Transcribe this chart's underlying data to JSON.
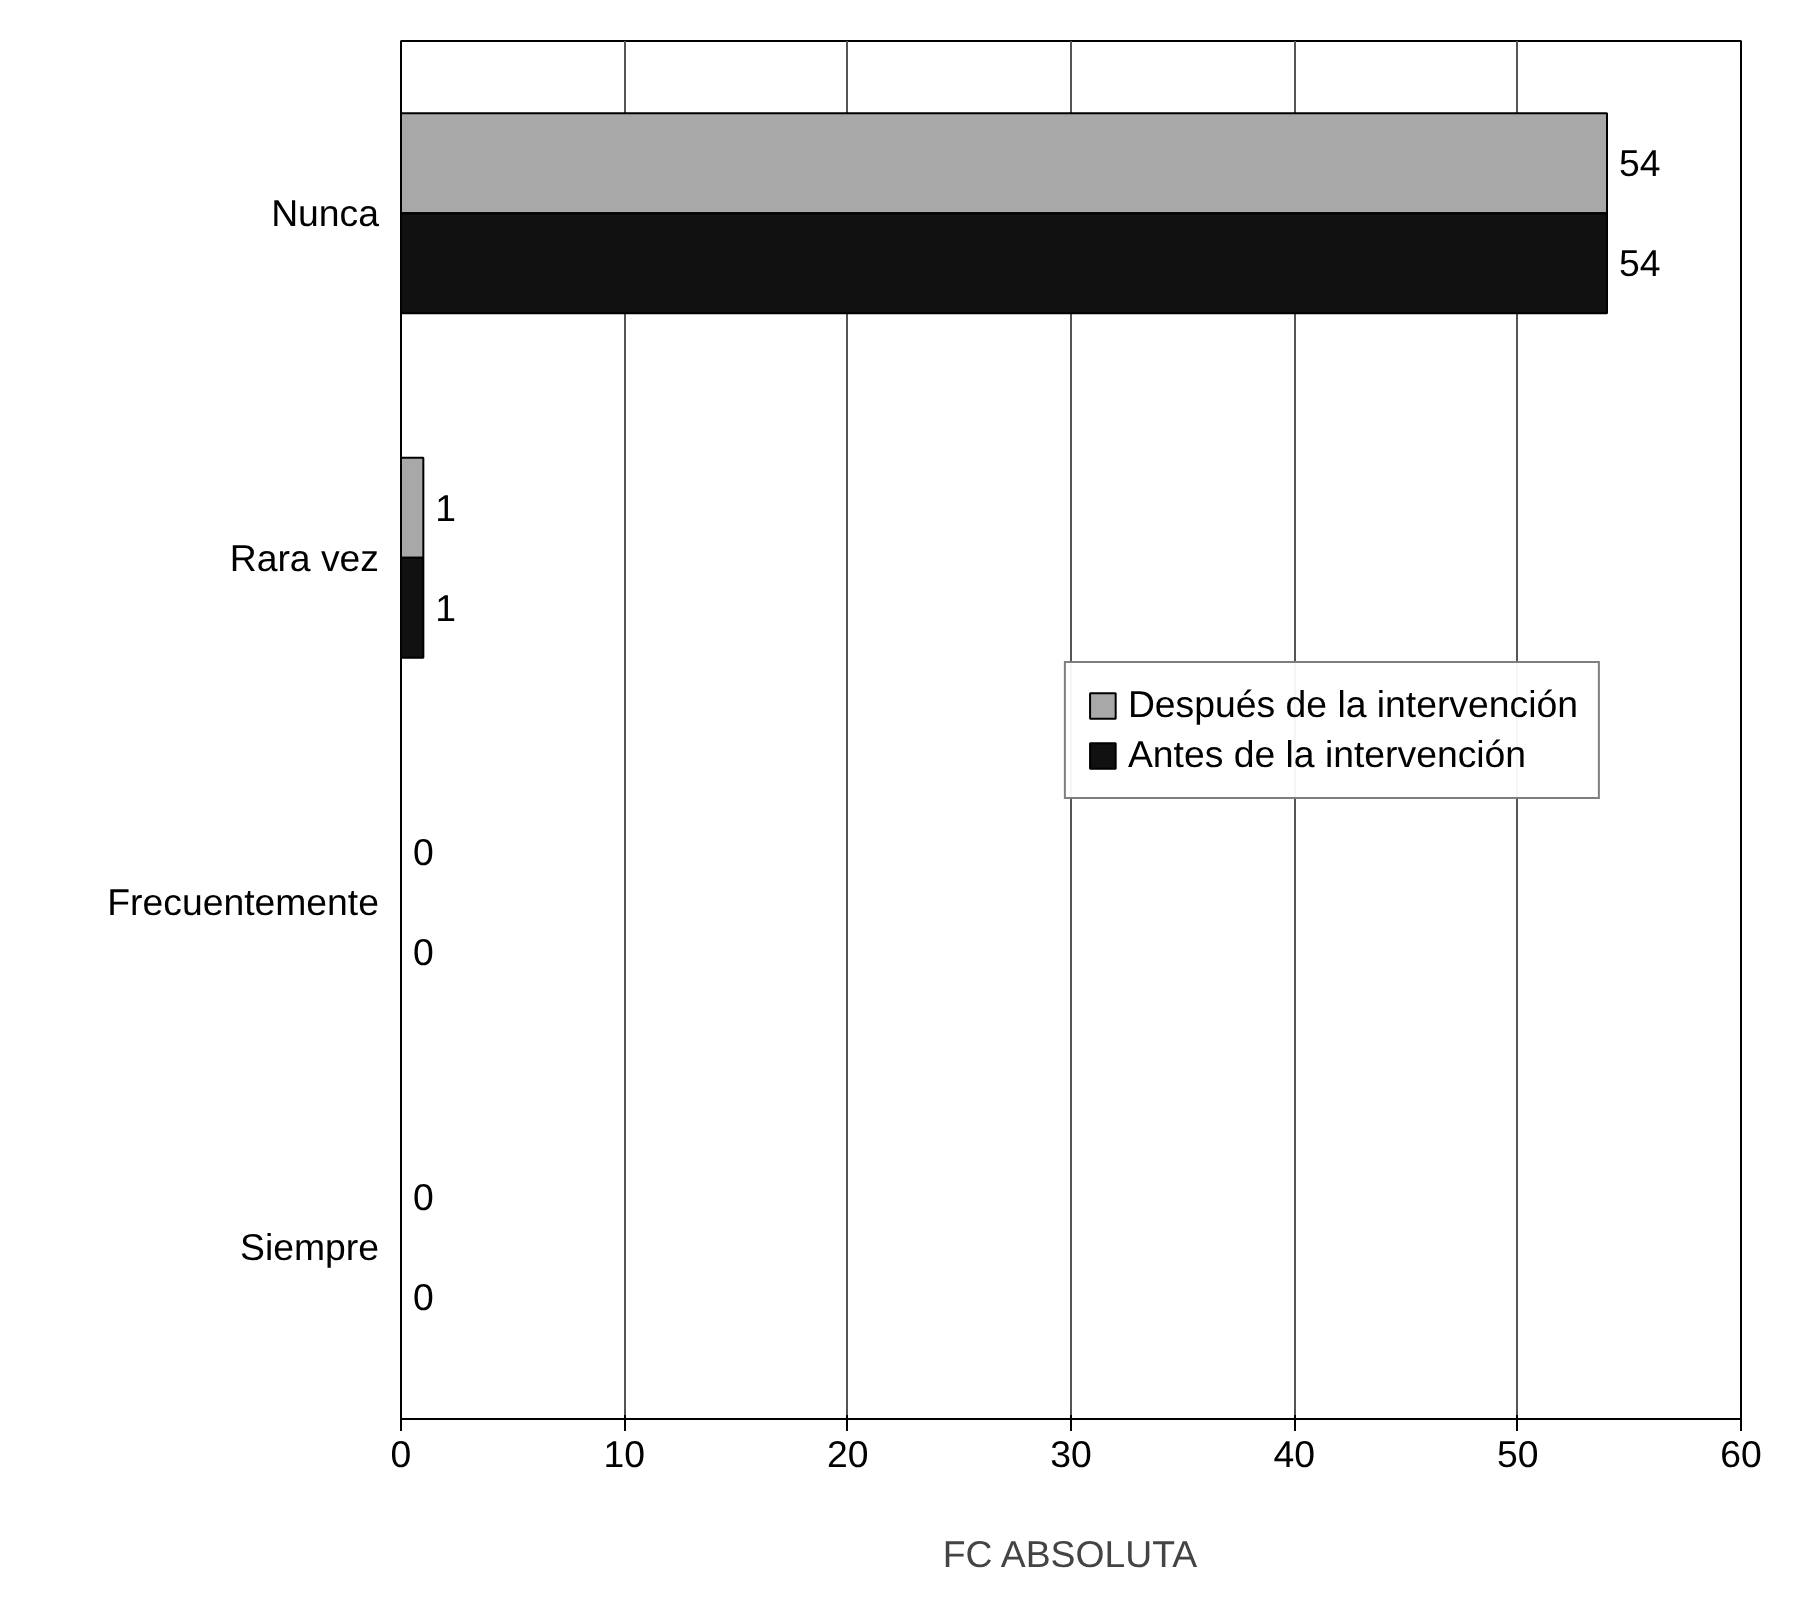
{
  "chart_data": {
    "type": "bar",
    "orientation": "horizontal",
    "xlabel": "FC ABSOLUTA",
    "categories": [
      "Nunca",
      "Rara vez",
      "Frecuentemente",
      "Siempre"
    ],
    "series": [
      {
        "name": "Después de la intervención",
        "color": "#a8a8a8",
        "values": [
          54,
          1,
          0,
          0
        ]
      },
      {
        "name": "Antes de la intervención",
        "color": "#111111",
        "values": [
          54,
          1,
          0,
          0
        ]
      }
    ],
    "xlim": [
      0,
      60
    ],
    "xticks": [
      0,
      10,
      20,
      30,
      40,
      50,
      60
    ],
    "grid": "x",
    "legend": "right",
    "data_labels": true
  }
}
